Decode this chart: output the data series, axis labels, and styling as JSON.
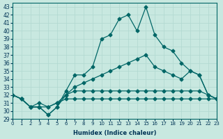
{
  "xlabel": "Humidex (Indice chaleur)",
  "ylabel": "",
  "xlim": [
    0,
    23
  ],
  "ylim": [
    29,
    43.5
  ],
  "yticks": [
    29,
    30,
    31,
    32,
    33,
    34,
    35,
    36,
    37,
    38,
    39,
    40,
    41,
    42,
    43
  ],
  "xticks": [
    0,
    1,
    2,
    3,
    4,
    5,
    6,
    7,
    8,
    9,
    10,
    11,
    12,
    13,
    14,
    15,
    16,
    17,
    18,
    19,
    20,
    21,
    22,
    23
  ],
  "bg_color": "#c8e8e0",
  "line_color": "#006666",
  "grid_color": "#b0d8d0",
  "lines": [
    [
      32,
      31.5,
      30.5,
      30.5,
      29.5,
      30.5,
      32.5,
      34.5,
      34.5,
      35.5,
      39,
      39.5,
      41.5,
      42,
      40,
      43,
      39.5,
      38,
      37.5,
      36,
      35,
      34.5,
      32,
      31.5
    ],
    [
      32,
      31.5,
      30.5,
      30.5,
      29.5,
      30.5,
      32,
      32.5,
      32.5,
      32.5,
      32.5,
      32.5,
      32.5,
      32.5,
      32.5,
      32.5,
      32.5,
      32.5,
      32.5,
      32.5,
      32.5,
      32.5,
      32,
      31.5
    ],
    [
      32,
      31.5,
      30.5,
      30.5,
      30.5,
      31,
      31.5,
      31.5,
      31.5,
      31.5,
      31.5,
      31.5,
      31.5,
      31.5,
      31.5,
      31.5,
      31.5,
      31.5,
      31.5,
      31.5,
      31.5,
      31.5,
      31.5,
      31.5
    ],
    [
      32,
      31.5,
      30.5,
      31,
      30.5,
      31,
      32,
      33,
      33.5,
      34,
      34.5,
      35,
      35.5,
      36,
      36.5,
      37,
      35.5,
      35,
      34.5,
      34,
      35,
      34.5,
      32,
      31.5
    ]
  ]
}
